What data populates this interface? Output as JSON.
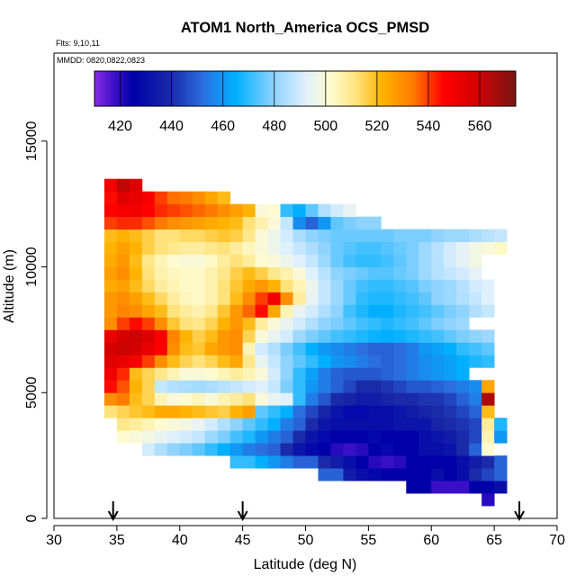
{
  "chart_data": {
    "type": "heatmap",
    "title": "ATOM1 North_America OCS_PMSD",
    "flights_note": "Flts: 9,10,11",
    "mmdd_note": "MMDD: 0820,0822,0823",
    "xlabel": "Latitude (deg N)",
    "ylabel": "Altitude (m)",
    "xlim": [
      30,
      70
    ],
    "ylim": [
      0,
      18500
    ],
    "x_ticks": [
      30,
      35,
      40,
      45,
      50,
      55,
      60,
      65,
      70
    ],
    "y_ticks": [
      0,
      5000,
      10000,
      15000
    ],
    "colorbar": {
      "range": [
        410,
        574
      ],
      "ticks": [
        420,
        440,
        460,
        480,
        500,
        520,
        540,
        560
      ],
      "dividers": [
        420,
        440,
        460,
        480,
        500,
        520,
        540,
        560
      ],
      "stops": [
        {
          "v": 410,
          "c": "#8a2be2"
        },
        {
          "v": 418,
          "c": "#3a0fc8"
        },
        {
          "v": 425,
          "c": "#0000aa"
        },
        {
          "v": 440,
          "c": "#1a2aa8"
        },
        {
          "v": 452,
          "c": "#2a6ee0"
        },
        {
          "v": 465,
          "c": "#00b0ff"
        },
        {
          "v": 480,
          "c": "#8fd3ff"
        },
        {
          "v": 492,
          "c": "#dff0ff"
        },
        {
          "v": 502,
          "c": "#fffbd0"
        },
        {
          "v": 512,
          "c": "#ffe27a"
        },
        {
          "v": 522,
          "c": "#ffb300"
        },
        {
          "v": 534,
          "c": "#ff7a00"
        },
        {
          "v": 546,
          "c": "#ff0000"
        },
        {
          "v": 558,
          "c": "#d70000"
        },
        {
          "v": 574,
          "c": "#7a1515"
        }
      ]
    },
    "cell_size": {
      "lat": 1,
      "alt": 500
    },
    "rows": [
      {
        "alt": 500,
        "start": 64,
        "values": [
          420
        ]
      },
      {
        "alt": 1000,
        "start": 58,
        "values": [
          425,
          425,
          418,
          418,
          418,
          425,
          425,
          430
        ]
      },
      {
        "alt": 1500,
        "start": 51,
        "values": [
          450,
          450,
          435,
          430,
          428,
          425,
          425,
          425,
          425,
          430,
          425,
          430,
          440,
          445,
          450
        ]
      },
      {
        "alt": 2000,
        "start": 44,
        "values": [
          470,
          470,
          465,
          460,
          455,
          450,
          450,
          440,
          435,
          430,
          425,
          420,
          418,
          420,
          425,
          425,
          425,
          425,
          430,
          435,
          440,
          450
        ]
      },
      {
        "alt": 2500,
        "start": 37,
        "values": [
          490,
          485,
          480,
          478,
          475,
          470,
          465,
          460,
          455,
          452,
          450,
          440,
          432,
          428,
          425,
          420,
          418,
          420,
          425,
          428,
          425,
          425,
          430,
          430,
          432,
          440,
          450,
          502
        ]
      },
      {
        "alt": 3000,
        "start": 35,
        "values": [
          502,
          500,
          498,
          495,
          492,
          490,
          488,
          482,
          478,
          472,
          468,
          460,
          455,
          450,
          440,
          432,
          428,
          425,
          425,
          425,
          428,
          425,
          425,
          425,
          430,
          432,
          435,
          440,
          445,
          505,
          460
        ]
      },
      {
        "alt": 3500,
        "start": 35,
        "values": [
          510,
          508,
          505,
          502,
          500,
          498,
          495,
          490,
          485,
          480,
          475,
          470,
          465,
          455,
          450,
          440,
          432,
          430,
          430,
          430,
          430,
          430,
          432,
          432,
          432,
          438,
          440,
          442,
          445,
          508,
          468
        ]
      },
      {
        "alt": 4000,
        "start": 34,
        "values": [
          512,
          515,
          518,
          520,
          524,
          524,
          522,
          520,
          518,
          516,
          522,
          526,
          475,
          470,
          465,
          452,
          445,
          438,
          432,
          428,
          428,
          430,
          430,
          432,
          435,
          438,
          440,
          442,
          445,
          450,
          520
        ]
      },
      {
        "alt": 4500,
        "start": 34,
        "values": [
          530,
          534,
          520,
          515,
          505,
          500,
          502,
          504,
          500,
          505,
          508,
          512,
          500,
          495,
          492,
          470,
          455,
          448,
          440,
          438,
          435,
          435,
          438,
          440,
          440,
          442,
          442,
          445,
          450,
          455,
          565
        ]
      },
      {
        "alt": 5000,
        "start": 34,
        "values": [
          545,
          538,
          522,
          515,
          488,
          485,
          484,
          483,
          484,
          486,
          488,
          490,
          492,
          488,
          478,
          470,
          460,
          455,
          450,
          445,
          440,
          440,
          442,
          445,
          448,
          448,
          450,
          452,
          455,
          458,
          525
        ]
      },
      {
        "alt": 5500,
        "start": 34,
        "values": [
          550,
          542,
          520,
          515,
          510,
          505,
          500,
          500,
          502,
          505,
          508,
          505,
          500,
          490,
          480,
          470,
          462,
          455,
          450,
          448,
          448,
          448,
          450,
          452,
          455,
          458,
          460,
          462,
          465
        ]
      },
      {
        "alt": 6000,
        "start": 34,
        "values": [
          555,
          552,
          548,
          540,
          530,
          520,
          515,
          512,
          515,
          520,
          525,
          510,
          495,
          488,
          480,
          475,
          470,
          465,
          460,
          458,
          455,
          452,
          450,
          452,
          455,
          458,
          460,
          462,
          465,
          468,
          470
        ]
      },
      {
        "alt": 6500,
        "start": 34,
        "values": [
          558,
          560,
          558,
          552,
          546,
          530,
          520,
          518,
          525,
          528,
          530,
          505,
          490,
          485,
          478,
          472,
          465,
          460,
          458,
          455,
          452,
          450,
          450,
          452,
          455,
          460,
          462,
          465,
          470,
          472,
          475
        ]
      },
      {
        "alt": 7000,
        "start": 34,
        "values": [
          552,
          558,
          560,
          556,
          548,
          532,
          522,
          516,
          520,
          528,
          530,
          515,
          500,
          495,
          490,
          482,
          478,
          475,
          472,
          470,
          468,
          466,
          465,
          466,
          468,
          470,
          472,
          475,
          478,
          480,
          482
        ]
      },
      {
        "alt": 7500,
        "start": 34,
        "values": [
          530,
          540,
          545,
          540,
          530,
          518,
          512,
          510,
          515,
          522,
          528,
          520,
          508,
          500,
          495,
          490,
          485,
          480,
          478,
          475,
          472,
          470,
          468,
          470,
          472,
          475,
          478,
          480,
          482
        ]
      },
      {
        "alt": 8000,
        "start": 34,
        "values": [
          528,
          532,
          530,
          525,
          520,
          512,
          508,
          506,
          510,
          518,
          528,
          536,
          545,
          525,
          505,
          495,
          490,
          485,
          480,
          472,
          468,
          465,
          465,
          468,
          470,
          472,
          475,
          478,
          480,
          485,
          488
        ]
      },
      {
        "alt": 8500,
        "start": 34,
        "values": [
          528,
          530,
          526,
          520,
          514,
          508,
          504,
          503,
          506,
          512,
          520,
          530,
          540,
          550,
          530,
          508,
          495,
          488,
          482,
          476,
          470,
          468,
          468,
          470,
          472,
          475,
          480,
          482,
          485,
          488,
          492
        ]
      },
      {
        "alt": 9000,
        "start": 34,
        "values": [
          524,
          526,
          520,
          514,
          508,
          505,
          503,
          503,
          506,
          512,
          518,
          524,
          528,
          522,
          512,
          505,
          496,
          488,
          482,
          476,
          472,
          470,
          470,
          472,
          474,
          478,
          480,
          482,
          486,
          490,
          492
        ]
      },
      {
        "alt": 9500,
        "start": 34,
        "values": [
          526,
          530,
          522,
          512,
          506,
          504,
          503,
          503,
          506,
          510,
          516,
          520,
          516,
          510,
          506,
          500,
          492,
          486,
          480,
          478,
          476,
          474,
          474,
          476,
          478,
          482,
          486,
          488,
          490,
          494
        ]
      },
      {
        "alt": 10000,
        "start": 34,
        "values": [
          524,
          528,
          520,
          510,
          505,
          502,
          500,
          500,
          503,
          508,
          512,
          508,
          502,
          500,
          496,
          492,
          488,
          482,
          476,
          472,
          470,
          470,
          472,
          475,
          478,
          482,
          486,
          490,
          494,
          498
        ]
      },
      {
        "alt": 10500,
        "start": 34,
        "values": [
          522,
          526,
          522,
          516,
          512,
          510,
          508,
          508,
          510,
          512,
          508,
          504,
          500,
          496,
          492,
          488,
          484,
          480,
          476,
          474,
          472,
          472,
          474,
          476,
          478,
          482,
          486,
          490,
          494,
          498,
          500,
          503
        ]
      },
      {
        "alt": 11000,
        "start": 34,
        "values": [
          520,
          522,
          520,
          516,
          512,
          512,
          514,
          514,
          516,
          518,
          516,
          510,
          500,
          496,
          490,
          484,
          480,
          478,
          476,
          476,
          476,
          476,
          476,
          478,
          478,
          478,
          480,
          482,
          482,
          484,
          486,
          488
        ]
      },
      {
        "alt": 11500,
        "start": 34,
        "values": [
          540,
          542,
          542,
          538,
          534,
          530,
          528,
          526,
          524,
          522,
          520,
          512,
          506,
          500,
          488,
          458,
          450,
          460,
          475,
          478,
          480,
          480
        ]
      },
      {
        "alt": 12000,
        "start": 34,
        "values": [
          546,
          548,
          550,
          546,
          542,
          540,
          538,
          536,
          534,
          530,
          526,
          522,
          500,
          502,
          470,
          465,
          475,
          485,
          490,
          495
        ]
      },
      {
        "alt": 12500,
        "start": 34,
        "values": [
          545,
          555,
          552,
          548,
          540,
          535,
          534,
          530,
          525,
          520
        ]
      },
      {
        "alt": 13000,
        "start": 34,
        "values": [
          550,
          562,
          556
        ]
      }
    ],
    "flight_markers_lat": [
      34.7,
      45,
      67
    ]
  }
}
